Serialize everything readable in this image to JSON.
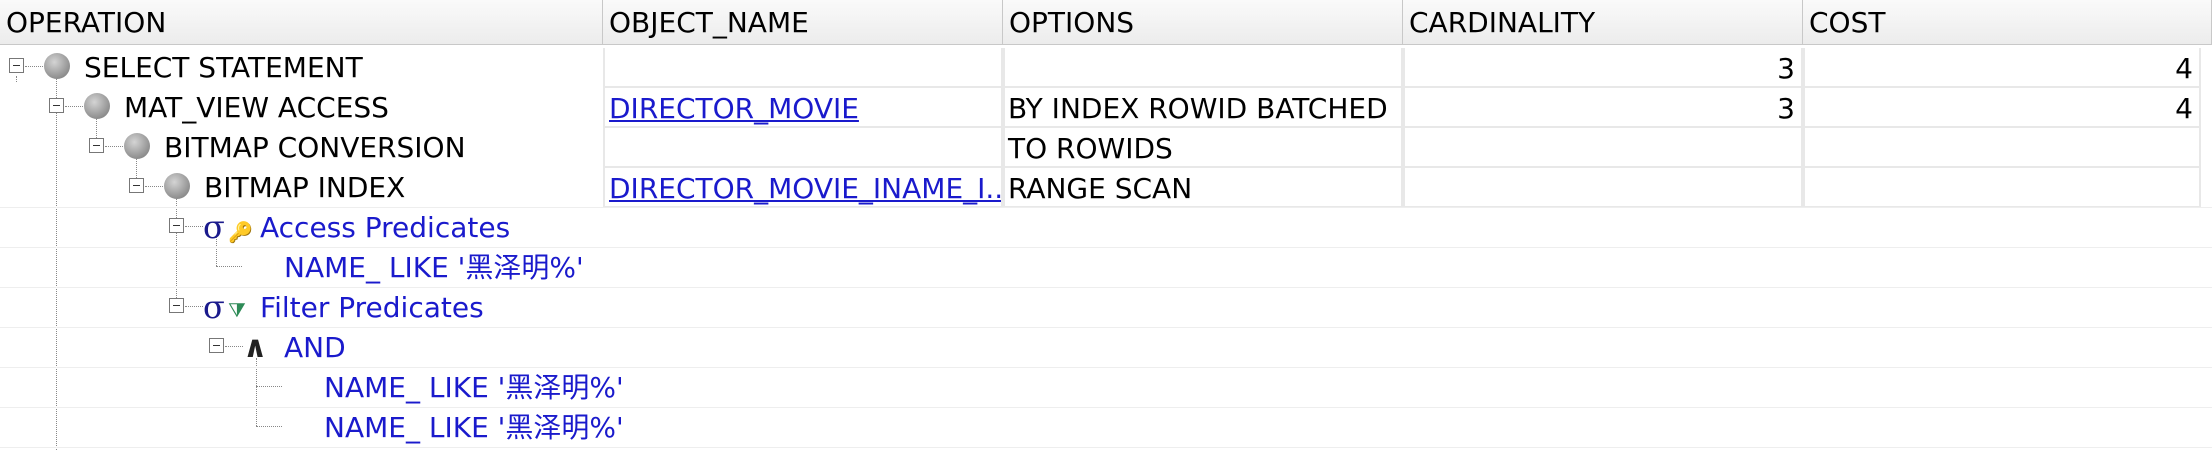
{
  "columns": [
    "OPERATION",
    "OBJECT_NAME",
    "OPTIONS",
    "CARDINALITY",
    "COST"
  ],
  "rows": [
    {
      "operation": "SELECT STATEMENT",
      "object_name": "",
      "options": "",
      "cardinality": "3",
      "cost": "4"
    },
    {
      "operation": "MAT_VIEW ACCESS",
      "object_name": "DIRECTOR_MOVIE",
      "options": "BY INDEX ROWID BATCHED",
      "cardinality": "3",
      "cost": "4"
    },
    {
      "operation": "BITMAP CONVERSION",
      "object_name": "",
      "options": "TO ROWIDS",
      "cardinality": "",
      "cost": ""
    },
    {
      "operation": "BITMAP INDEX",
      "object_name": "DIRECTOR_MOVIE_INAME_I...",
      "options": "RANGE SCAN",
      "cardinality": "",
      "cost": ""
    }
  ],
  "predicates": {
    "access_label": "Access Predicates",
    "access_value": "NAME_ LIKE '黑泽明%'",
    "filter_label": "Filter Predicates",
    "and_label": "AND",
    "filter_values": [
      "NAME_ LIKE '黑泽明%'",
      "NAME_ LIKE '黑泽明%'"
    ]
  },
  "icons": {
    "op_node": "plan-node-icon",
    "access": "access-predicate-icon",
    "filter": "filter-predicate-icon",
    "and": "and-operator-icon",
    "toggle": "collapse-toggle-icon"
  },
  "colors": {
    "predicate_text": "#1a1acc",
    "header_bg": "#ececec"
  }
}
